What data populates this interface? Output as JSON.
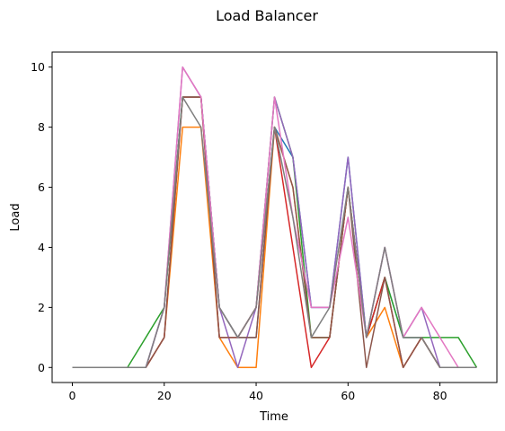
{
  "chart_data": {
    "type": "line",
    "title": "Load Balancer",
    "xlabel": "Time",
    "ylabel": "Load",
    "xlim": [
      -4.4,
      92.4
    ],
    "ylim": [
      -0.5,
      10.5
    ],
    "xticks": [
      0,
      20,
      40,
      60,
      80
    ],
    "yticks": [
      0,
      2,
      4,
      6,
      8,
      10
    ],
    "grid": false,
    "x": [
      0,
      4,
      8,
      12,
      16,
      20,
      24,
      28,
      32,
      36,
      40,
      44,
      48,
      52,
      56,
      60,
      64,
      68,
      72,
      76,
      80,
      84,
      88
    ],
    "series": [
      {
        "color": "#1f77b4",
        "values": [
          0,
          0,
          0,
          0,
          0,
          2,
          9,
          9,
          2,
          1,
          1,
          8,
          7,
          2,
          2,
          7,
          1,
          3,
          1,
          1,
          0,
          0,
          0
        ]
      },
      {
        "color": "#ff7f0e",
        "values": [
          0,
          0,
          0,
          0,
          0,
          1,
          8,
          8,
          1,
          0,
          0,
          8,
          6,
          1,
          1,
          6,
          1,
          2,
          0,
          1,
          0,
          0,
          0
        ]
      },
      {
        "color": "#2ca02c",
        "values": [
          0,
          0,
          0,
          0,
          1,
          2,
          9,
          9,
          2,
          1,
          2,
          9,
          7,
          1,
          1,
          6,
          1,
          3,
          1,
          1,
          1,
          1,
          0
        ]
      },
      {
        "color": "#d62728",
        "values": [
          0,
          0,
          0,
          0,
          0,
          1,
          9,
          9,
          1,
          1,
          2,
          8,
          4,
          0,
          1,
          6,
          1,
          3,
          0,
          1,
          0,
          0,
          0
        ]
      },
      {
        "color": "#9467bd",
        "values": [
          0,
          0,
          0,
          0,
          0,
          2,
          10,
          9,
          2,
          0,
          2,
          9,
          7,
          2,
          2,
          7,
          1,
          4,
          1,
          2,
          0,
          0,
          0
        ]
      },
      {
        "color": "#8c564b",
        "values": [
          0,
          0,
          0,
          0,
          0,
          1,
          9,
          9,
          1,
          1,
          1,
          8,
          6,
          1,
          1,
          6,
          0,
          3,
          0,
          1,
          0,
          0,
          0
        ]
      },
      {
        "color": "#e377c2",
        "values": [
          0,
          0,
          0,
          0,
          0,
          2,
          10,
          9,
          2,
          1,
          2,
          9,
          5,
          2,
          2,
          5,
          1,
          4,
          1,
          2,
          1,
          0,
          0
        ]
      },
      {
        "color": "#7f7f7f",
        "values": [
          0,
          0,
          0,
          0,
          0,
          2,
          9,
          8,
          2,
          1,
          2,
          8,
          5,
          1,
          2,
          6,
          1,
          4,
          1,
          1,
          0,
          0,
          0
        ]
      }
    ]
  }
}
